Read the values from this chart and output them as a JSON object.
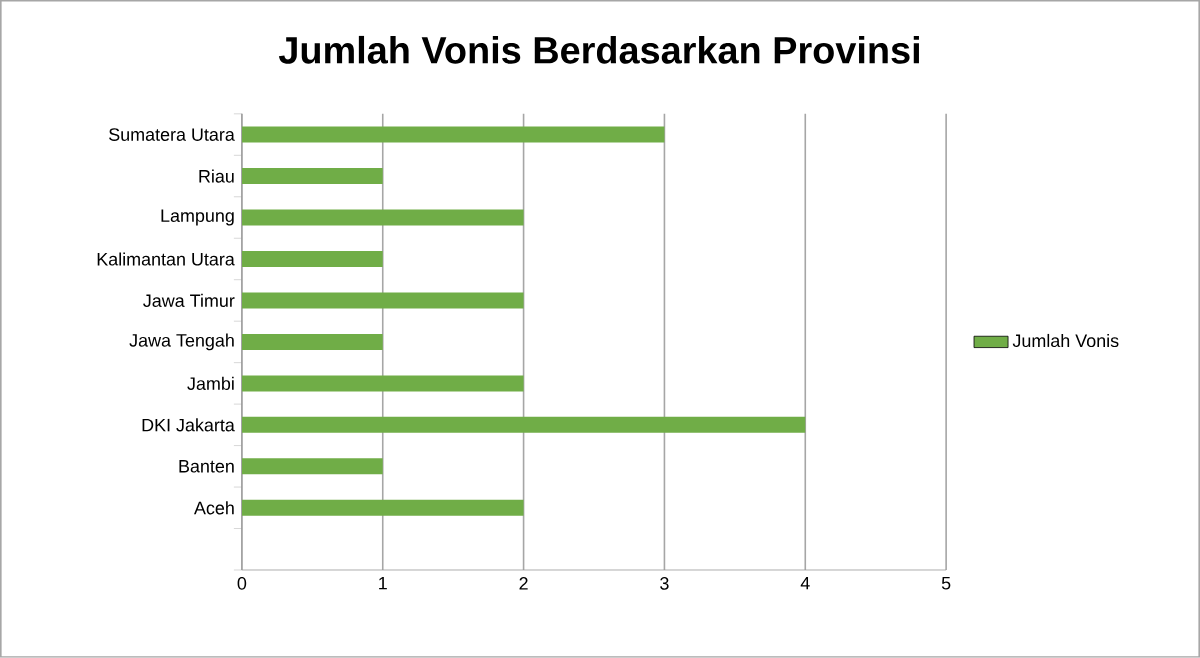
{
  "chart_data": {
    "type": "bar",
    "orientation": "horizontal",
    "title": "Jumlah Vonis Berdasarkan Provinsi",
    "categories": [
      "Sumatera Utara",
      "Riau",
      "Lampung",
      "Kalimantan Utara",
      "Jawa Timur",
      "Jawa Tengah",
      "Jambi",
      "DKI Jakarta",
      "Banten",
      "Aceh",
      null
    ],
    "series": [
      {
        "name": "Jumlah Vonis",
        "color": "#70ad47",
        "values": [
          3,
          1,
          2,
          1,
          2,
          1,
          2,
          4,
          1,
          2,
          null
        ]
      }
    ],
    "xlim": [
      0,
      5
    ],
    "xticks": [
      0,
      1,
      2,
      3,
      4,
      5
    ],
    "grid": "x",
    "legend": "right"
  }
}
